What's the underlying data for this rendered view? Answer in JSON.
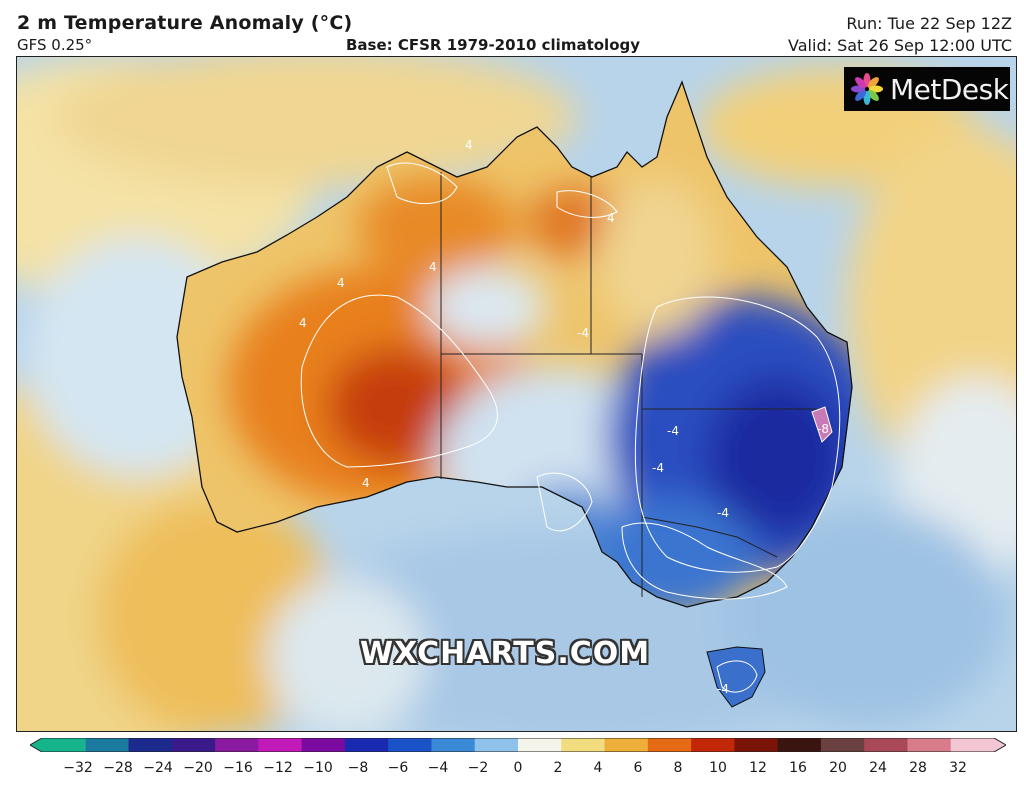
{
  "header": {
    "title": "2 m Temperature Anomaly (°C)",
    "model": "GFS 0.25°",
    "base": "Base: CFSR 1979-2010 climatology",
    "run": "Run: Tue 22 Sep 12Z",
    "valid": "Valid: Sat 26 Sep 12:00 UTC"
  },
  "logo": {
    "text": "MetDesk",
    "icon": "metdesk-flower-icon"
  },
  "watermark": "WXCHARTS.COM",
  "map": {
    "region": "Australia",
    "contour_labels": {
      "warm": "4",
      "cold": "-4",
      "cold_strong": "-8"
    }
  },
  "colorbar": {
    "ticks": [
      "−32",
      "−28",
      "−24",
      "−20",
      "−16",
      "−12",
      "−10",
      "−8",
      "−6",
      "−4",
      "−2",
      "0",
      "2",
      "4",
      "6",
      "8",
      "10",
      "12",
      "16",
      "20",
      "24",
      "28",
      "32"
    ],
    "colors": [
      "#16b48a",
      "#1a7aa0",
      "#1b2a8c",
      "#3a1a8a",
      "#8a1aa0",
      "#c21ab8",
      "#7a0aa0",
      "#1a2ab0",
      "#1a52c8",
      "#3a8ad8",
      "#8ec2ea",
      "#f4f4ea",
      "#f2dc80",
      "#eeae3a",
      "#e46a14",
      "#c22808",
      "#7a1408",
      "#3a1410",
      "#6a4040",
      "#a84858",
      "#d87c8c",
      "#f2c6d2"
    ]
  }
}
